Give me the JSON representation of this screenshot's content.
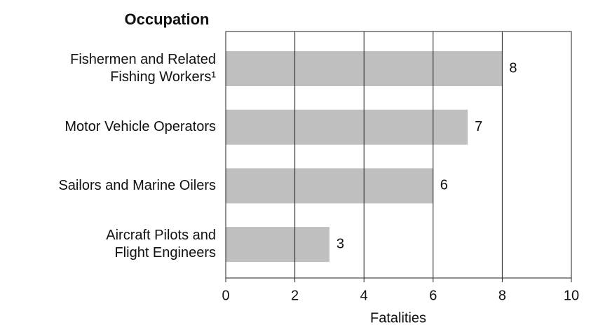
{
  "chart_data": {
    "type": "bar",
    "orientation": "horizontal",
    "title": "Occupation",
    "x_label": "Fatalities",
    "categories": [
      "Fishermen and Related\nFishing Workers¹",
      "Motor Vehicle Operators",
      "Sailors and Marine Oilers",
      "Aircraft Pilots and\nFlight Engineers"
    ],
    "values": [
      8,
      7,
      6,
      3
    ],
    "color": "#bfbfbf",
    "xlim": [
      0,
      10
    ],
    "xticks": [
      0,
      2,
      4,
      6,
      8,
      10
    ],
    "grid": true
  }
}
